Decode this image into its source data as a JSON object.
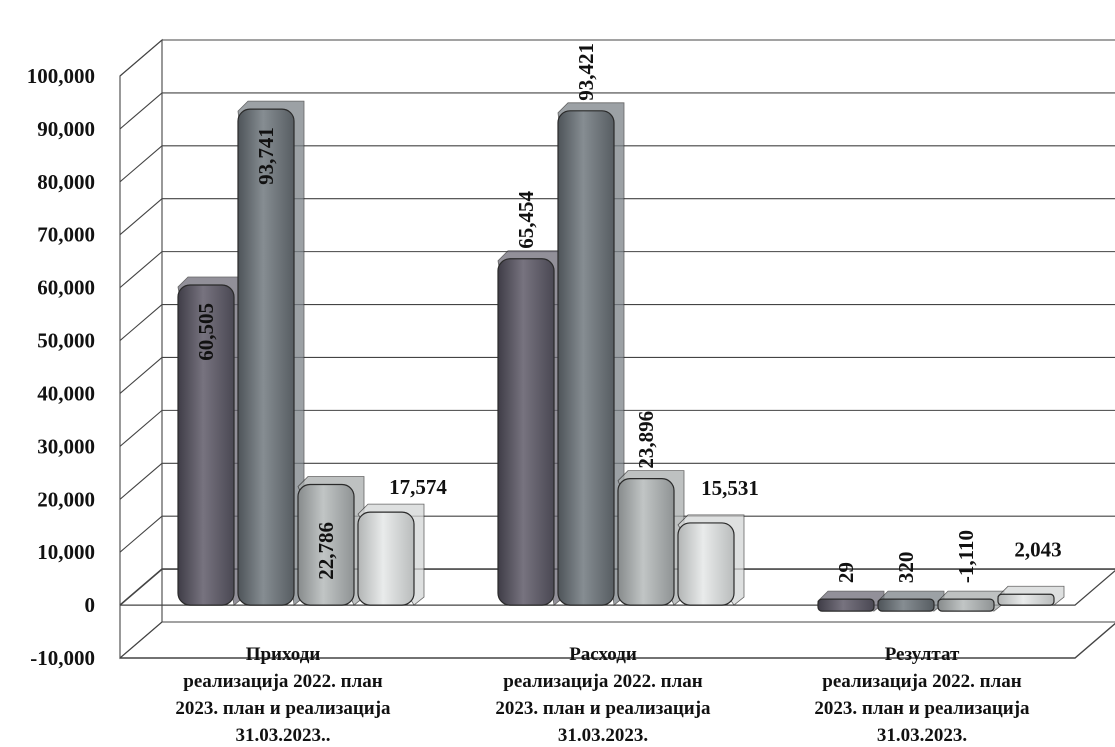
{
  "chart_data": {
    "type": "bar",
    "categories": [
      {
        "lines": [
          "Приходи",
          "реализација 2022. план",
          "2023. план и реализација",
          "31.03.2023.."
        ]
      },
      {
        "lines": [
          "Расходи",
          "реализација 2022. план",
          "2023. план и реализација",
          "31.03.2023."
        ]
      },
      {
        "lines": [
          "Резултат",
          "реализација 2022. план",
          "2023. план и реализација",
          "31.03.2023."
        ]
      }
    ],
    "series": [
      {
        "values": [
          60505,
          65454,
          29
        ],
        "labels": [
          "60,505",
          "65,454",
          "29"
        ],
        "color": "#6e6b78"
      },
      {
        "values": [
          93741,
          93421,
          320
        ],
        "labels": [
          "93,741",
          "93,421",
          "320"
        ],
        "color": "#7b8288"
      },
      {
        "values": [
          22786,
          23896,
          -1110
        ],
        "labels": [
          "22,786",
          "23,896",
          "-1,110"
        ],
        "color": "#a9adad"
      },
      {
        "values": [
          17574,
          15531,
          2043
        ],
        "labels": [
          "17,574",
          "15,531",
          "2,043"
        ],
        "color": "#d4d6d6"
      }
    ],
    "yticks": [
      "-10,000",
      "0",
      "10,000",
      "20,000",
      "30,000",
      "40,000",
      "50,000",
      "60,000",
      "70,000",
      "80,000",
      "90,000",
      "100,000"
    ],
    "ylim": [
      -10000,
      100000
    ],
    "grid": true,
    "legend": "none",
    "three_d": true
  }
}
